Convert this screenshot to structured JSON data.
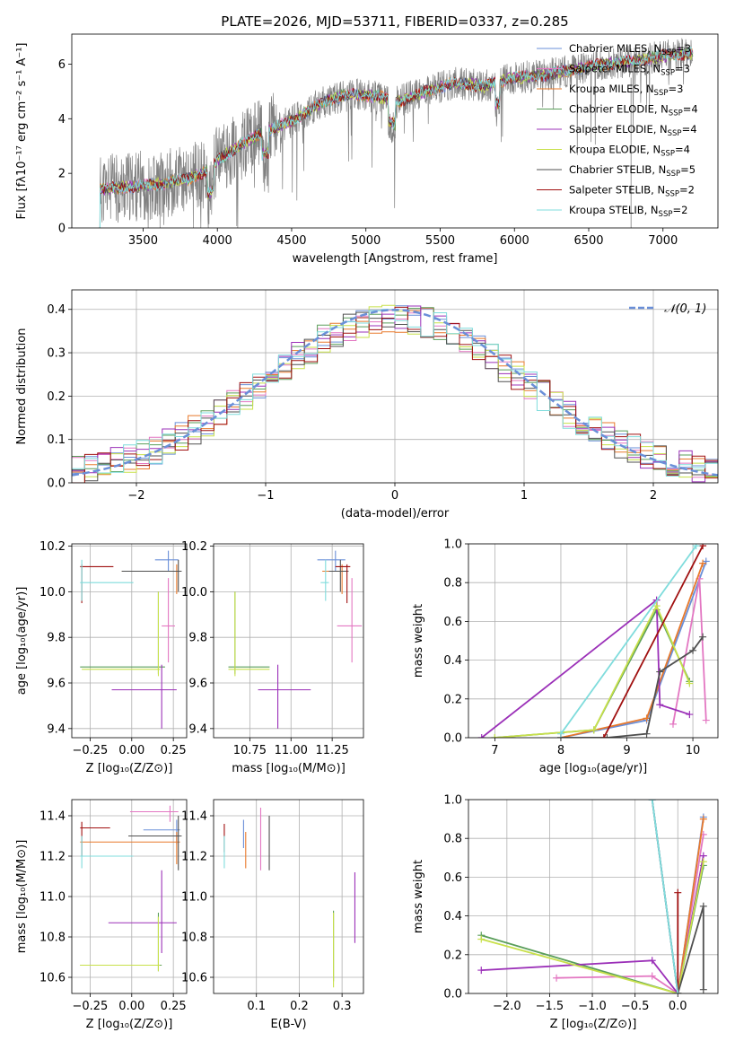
{
  "title": "PLATE=2026, MJD=53711, FIBERID=0337, z=0.285",
  "colors": {
    "Chabrier MILES": "#6a8fd8",
    "Salpeter MILES": "#e377c2",
    "Kroupa MILES": "#e8792b",
    "Chabrier ELODIE": "#5a9e5a",
    "Salpeter ELODIE": "#9b30b8",
    "Kroupa ELODIE": "#c8e04a",
    "Chabrier STELIB": "#505050",
    "Salpeter STELIB": "#a01010",
    "Kroupa STELIB": "#7fdcdc",
    "data": "#808080"
  },
  "chart_data": [
    {
      "type": "line",
      "name": "spectrum",
      "xlabel": "wavelength [Angstrom, rest frame]",
      "ylabel": "Flux [fλ10⁻¹⁷ erg cm⁻² s⁻¹ A⁻¹]",
      "xlim": [
        3020,
        7370
      ],
      "ylim": [
        0,
        7.1
      ],
      "xticks": [
        "3500",
        "4000",
        "4500",
        "5000",
        "5500",
        "6000",
        "6500",
        "7000"
      ],
      "yticks": [
        "0",
        "2",
        "4",
        "6"
      ],
      "continuum_x": [
        3210,
        3400,
        3600,
        3800,
        3950,
        4000,
        4150,
        4300,
        4500,
        4700,
        4900,
        5100,
        5200,
        5400,
        5600,
        5800,
        6000,
        6200,
        6400,
        6600,
        6800,
        7000,
        7200
      ],
      "continuum_y": [
        1.4,
        1.5,
        1.6,
        1.8,
        2.1,
        2.5,
        3.0,
        3.5,
        3.9,
        4.6,
        4.9,
        4.8,
        4.6,
        5.0,
        5.3,
        5.2,
        5.5,
        5.6,
        5.8,
        6.0,
        6.1,
        6.3,
        6.4
      ],
      "legend": [
        {
          "label": "Chabrier MILES, N",
          "sub": "SSP",
          "eq": "=3"
        },
        {
          "label": "Salpeter MILES, N",
          "sub": "SSP",
          "eq": "=3"
        },
        {
          "label": "Kroupa MILES, N",
          "sub": "SSP",
          "eq": "=3"
        },
        {
          "label": "Chabrier ELODIE, N",
          "sub": "SSP",
          "eq": "=4"
        },
        {
          "label": "Salpeter ELODIE, N",
          "sub": "SSP",
          "eq": "=4"
        },
        {
          "label": "Kroupa ELODIE, N",
          "sub": "SSP",
          "eq": "=4"
        },
        {
          "label": "Chabrier STELIB, N",
          "sub": "SSP",
          "eq": "=5"
        },
        {
          "label": "Salpeter STELIB, N",
          "sub": "SSP",
          "eq": "=2"
        },
        {
          "label": "Kroupa STELIB, N",
          "sub": "SSP",
          "eq": "=2"
        }
      ]
    },
    {
      "type": "line",
      "name": "residual histogram",
      "xlabel": "(data-model)/error",
      "ylabel": "Normed distribution",
      "xlim": [
        -2.5,
        2.5
      ],
      "ylim": [
        0,
        0.445
      ],
      "xticks": [
        "−2",
        "−1",
        "0",
        "1",
        "2"
      ],
      "yticks": [
        "0.0",
        "0.1",
        "0.2",
        "0.3",
        "0.4"
      ],
      "legend_label": "𝒩(0, 1)",
      "gaussian": {
        "mean": 0,
        "sigma": 1
      },
      "bin_width": 0.1
    },
    {
      "type": "scatter",
      "name": "age vs Z",
      "xlabel": "Z [log₁₀(Z/Z⊙)]",
      "ylabel": "age  [log₁₀(age/yr)]",
      "xlim": [
        -0.36,
        0.33
      ],
      "ylim": [
        9.36,
        10.21
      ],
      "xticks": [
        "−0.25",
        "0.00",
        "0.25"
      ],
      "xtick_vals": [
        -0.25,
        0,
        0.25
      ],
      "yticks": [
        "9.4",
        "9.6",
        "9.8",
        "10.0",
        "10.2"
      ],
      "ytick_vals": [
        9.4,
        9.6,
        9.8,
        10.0,
        10.2
      ],
      "points": [
        {
          "c": "Chabrier MILES",
          "x": 0.22,
          "xe": [
            0.14,
            0.28
          ],
          "y": 10.14,
          "ye": [
            10.09,
            10.18
          ]
        },
        {
          "c": "Salpeter MILES",
          "x": 0.22,
          "xe": [
            0.18,
            0.26
          ],
          "y": 9.85,
          "ye": [
            9.69,
            10.06
          ]
        },
        {
          "c": "Kroupa MILES",
          "x": 0.27,
          "xe": [
            -0.06,
            0.29
          ],
          "y": 10.09,
          "ye": [
            9.99,
            10.12
          ]
        },
        {
          "c": "Chabrier ELODIE",
          "x": 0.16,
          "xe": [
            -0.31,
            0.2
          ],
          "y": 9.67,
          "ye": [
            9.64,
            10.0
          ]
        },
        {
          "c": "Salpeter ELODIE",
          "x": 0.18,
          "xe": [
            -0.12,
            0.27
          ],
          "y": 9.57,
          "ye": [
            9.4,
            9.68
          ]
        },
        {
          "c": "Kroupa ELODIE",
          "x": 0.16,
          "xe": [
            -0.3,
            0.17
          ],
          "y": 9.66,
          "ye": [
            9.63,
            10.0
          ]
        },
        {
          "c": "Chabrier STELIB",
          "x": 0.28,
          "xe": [
            -0.06,
            0.3
          ],
          "y": 10.09,
          "ye": [
            10.0,
            10.14
          ]
        },
        {
          "c": "Salpeter STELIB",
          "x": -0.3,
          "xe": [
            -0.31,
            -0.11
          ],
          "y": 10.11,
          "ye": [
            9.95,
            10.12
          ]
        },
        {
          "c": "Kroupa STELIB",
          "x": -0.3,
          "xe": [
            -0.31,
            0.01
          ],
          "y": 10.04,
          "ye": [
            9.96,
            10.14
          ]
        }
      ]
    },
    {
      "type": "scatter",
      "name": "age vs mass",
      "xlabel": "mass [log₁₀(M/M⊙)]",
      "ylabel": "",
      "xlim": [
        10.53,
        11.44
      ],
      "ylim": [
        9.36,
        10.21
      ],
      "xticks": [
        "10.75",
        "11.00",
        "11.25"
      ],
      "xtick_vals": [
        10.75,
        11.0,
        11.25
      ],
      "yticks": [
        "9.4",
        "9.6",
        "9.8",
        "10.0",
        "10.2"
      ],
      "ytick_vals": [
        9.4,
        9.6,
        9.8,
        10.0,
        10.2
      ],
      "points": [
        {
          "c": "Chabrier MILES",
          "x": 11.27,
          "xe": [
            11.16,
            11.33
          ],
          "y": 10.14,
          "ye": [
            10.09,
            10.18
          ]
        },
        {
          "c": "Salpeter MILES",
          "x": 11.37,
          "xe": [
            11.28,
            11.43
          ],
          "y": 9.85,
          "ye": [
            9.69,
            10.06
          ]
        },
        {
          "c": "Kroupa MILES",
          "x": 11.31,
          "xe": [
            11.19,
            11.34
          ],
          "y": 10.09,
          "ye": [
            9.99,
            10.12
          ]
        },
        {
          "c": "Chabrier ELODIE",
          "x": 10.66,
          "xe": [
            10.62,
            10.87
          ],
          "y": 9.67,
          "ye": [
            9.64,
            10.0
          ]
        },
        {
          "c": "Salpeter ELODIE",
          "x": 10.92,
          "xe": [
            10.8,
            11.12
          ],
          "y": 9.57,
          "ye": [
            9.4,
            9.68
          ]
        },
        {
          "c": "Kroupa ELODIE",
          "x": 10.66,
          "xe": [
            10.62,
            10.87
          ],
          "y": 9.66,
          "ye": [
            9.63,
            10.0
          ]
        },
        {
          "c": "Chabrier STELIB",
          "x": 11.3,
          "xe": [
            11.23,
            11.35
          ],
          "y": 10.09,
          "ye": [
            10.0,
            10.14
          ]
        },
        {
          "c": "Salpeter STELIB",
          "x": 11.34,
          "xe": [
            11.27,
            11.36
          ],
          "y": 10.11,
          "ye": [
            9.95,
            10.12
          ]
        },
        {
          "c": "Kroupa STELIB",
          "x": 11.21,
          "xe": [
            11.18,
            11.23
          ],
          "y": 10.04,
          "ye": [
            9.96,
            10.14
          ]
        }
      ]
    },
    {
      "type": "line",
      "name": "mass weight vs age",
      "xlabel": "age  [log₁₀(age/yr)]",
      "ylabel": "mass weight",
      "xlim": [
        6.6,
        10.38
      ],
      "ylim": [
        0,
        1.0
      ],
      "xticks": [
        "7",
        "8",
        "9",
        "10"
      ],
      "xtick_vals": [
        7,
        8,
        9,
        10
      ],
      "yticks": [
        "0.0",
        "0.2",
        "0.4",
        "0.6",
        "0.8",
        "1.0"
      ],
      "ytick_vals": [
        0,
        0.2,
        0.4,
        0.6,
        0.8,
        1.0
      ],
      "series": [
        {
          "c": "Chabrier MILES",
          "x": [
            8.0,
            9.3,
            10.2
          ],
          "y": [
            0.0,
            0.09,
            0.91
          ]
        },
        {
          "c": "Salpeter MILES",
          "x": [
            9.7,
            10.1,
            10.2
          ],
          "y": [
            0.07,
            0.82,
            0.09
          ]
        },
        {
          "c": "Kroupa MILES",
          "x": [
            8.0,
            9.3,
            10.15
          ],
          "y": [
            0.0,
            0.1,
            0.9
          ]
        },
        {
          "c": "Chabrier ELODIE",
          "x": [
            7.0,
            8.5,
            9.45,
            9.95
          ],
          "y": [
            0.0,
            0.04,
            0.66,
            0.29
          ]
        },
        {
          "c": "Salpeter ELODIE",
          "x": [
            6.8,
            9.45,
            9.5,
            9.95
          ],
          "y": [
            0.0,
            0.71,
            0.17,
            0.12
          ]
        },
        {
          "c": "Kroupa ELODIE",
          "x": [
            7.0,
            8.5,
            9.45,
            9.95
          ],
          "y": [
            0.0,
            0.04,
            0.68,
            0.28
          ]
        },
        {
          "c": "Chabrier STELIB",
          "x": [
            8.0,
            8.7,
            9.3,
            9.5,
            10.0,
            10.15
          ],
          "y": [
            0.0,
            0.0,
            0.02,
            0.34,
            0.45,
            0.52
          ]
        },
        {
          "c": "Salpeter STELIB",
          "x": [
            8.65,
            10.15
          ],
          "y": [
            0.0,
            0.99
          ]
        },
        {
          "c": "Kroupa STELIB",
          "x": [
            8.0,
            10.05
          ],
          "y": [
            0.02,
            0.99
          ]
        }
      ]
    },
    {
      "type": "scatter",
      "name": "mass vs Z",
      "xlabel": "Z [log₁₀(Z/Z⊙)]",
      "ylabel": "mass [log₁₀(M/M⊙)]",
      "xlim": [
        -0.36,
        0.33
      ],
      "ylim": [
        10.52,
        11.48
      ],
      "xticks": [
        "−0.25",
        "0.00",
        "0.25"
      ],
      "xtick_vals": [
        -0.25,
        0,
        0.25
      ],
      "yticks": [
        "10.6",
        "10.8",
        "11.0",
        "11.2",
        "11.4"
      ],
      "ytick_vals": [
        10.6,
        10.8,
        11.0,
        11.2,
        11.4
      ],
      "points": [
        {
          "c": "Chabrier MILES",
          "x": 0.27,
          "xe": [
            0.07,
            0.29
          ],
          "y": 11.33,
          "ye": [
            11.26,
            11.38
          ]
        },
        {
          "c": "Salpeter MILES",
          "x": 0.23,
          "xe": [
            -0.01,
            0.28
          ],
          "y": 11.42,
          "ye": [
            11.37,
            11.45
          ]
        },
        {
          "c": "Kroupa MILES",
          "x": 0.27,
          "xe": [
            -0.31,
            0.29
          ],
          "y": 11.27,
          "ye": [
            11.16,
            11.32
          ]
        },
        {
          "c": "Chabrier ELODIE",
          "x": 0.16,
          "xe": [
            -0.31,
            0.18
          ],
          "y": 10.66,
          "ye": [
            10.63,
            10.92
          ]
        },
        {
          "c": "Salpeter ELODIE",
          "x": 0.18,
          "xe": [
            -0.14,
            0.27
          ],
          "y": 10.87,
          "ye": [
            10.72,
            11.13
          ]
        },
        {
          "c": "Kroupa ELODIE",
          "x": 0.16,
          "xe": [
            -0.31,
            0.17
          ],
          "y": 10.66,
          "ye": [
            10.63,
            10.9
          ]
        },
        {
          "c": "Chabrier STELIB",
          "x": 0.28,
          "xe": [
            -0.02,
            0.3
          ],
          "y": 11.3,
          "ye": [
            11.13,
            11.4
          ]
        },
        {
          "c": "Salpeter STELIB",
          "x": -0.3,
          "xe": [
            -0.31,
            -0.13
          ],
          "y": 11.34,
          "ye": [
            11.2,
            11.37
          ]
        },
        {
          "c": "Kroupa STELIB",
          "x": -0.3,
          "xe": [
            -0.31,
            0.01
          ],
          "y": 11.2,
          "ye": [
            11.14,
            11.3
          ]
        }
      ]
    },
    {
      "type": "scatter",
      "name": "mass vs E(B-V)",
      "xlabel": "E(B-V)",
      "ylabel": "",
      "xlim": [
        0.0,
        0.35
      ],
      "ylim": [
        10.52,
        11.48
      ],
      "xticks": [
        "0.1",
        "0.2",
        "0.3"
      ],
      "xtick_vals": [
        0.1,
        0.2,
        0.3
      ],
      "yticks": [
        "10.6",
        "10.8",
        "11.0",
        "11.2",
        "11.4"
      ],
      "ytick_vals": [
        10.6,
        10.8,
        11.0,
        11.2,
        11.4
      ],
      "points": [
        {
          "c": "Chabrier MILES",
          "x": 0.07,
          "ye": [
            11.24,
            11.38
          ]
        },
        {
          "c": "Salpeter MILES",
          "x": 0.11,
          "ye": [
            11.13,
            11.44
          ]
        },
        {
          "c": "Kroupa MILES",
          "x": 0.075,
          "ye": [
            11.14,
            11.32
          ]
        },
        {
          "c": "Chabrier ELODIE",
          "x": 0.28,
          "ye": [
            10.58,
            10.93
          ]
        },
        {
          "c": "Salpeter ELODIE",
          "x": 0.33,
          "ye": [
            10.77,
            11.12
          ]
        },
        {
          "c": "Kroupa ELODIE",
          "x": 0.28,
          "ye": [
            10.55,
            10.92
          ]
        },
        {
          "c": "Chabrier STELIB",
          "x": 0.13,
          "ye": [
            11.13,
            11.4
          ]
        },
        {
          "c": "Salpeter STELIB",
          "x": 0.025,
          "ye": [
            11.22,
            11.36
          ]
        },
        {
          "c": "Kroupa STELIB",
          "x": 0.025,
          "ye": [
            11.14,
            11.3
          ]
        }
      ]
    },
    {
      "type": "line",
      "name": "mass weight vs Z",
      "xlabel": "Z [log₁₀(Z/Z⊙)]",
      "ylabel": "mass weight",
      "xlim": [
        -2.45,
        0.47
      ],
      "ylim": [
        0,
        1.0
      ],
      "xticks": [
        "−2.0",
        "−1.5",
        "−1.0",
        "−0.5",
        "0.0"
      ],
      "xtick_vals": [
        -2.0,
        -1.5,
        -1.0,
        -0.5,
        0.0
      ],
      "yticks": [
        "0.0",
        "0.2",
        "0.4",
        "0.6",
        "0.8",
        "1.0"
      ],
      "ytick_vals": [
        0,
        0.2,
        0.4,
        0.6,
        0.8,
        1.0
      ],
      "series": [
        {
          "c": "Chabrier MILES",
          "x": [
            -0.3,
            0.0,
            0.3
          ],
          "y": [
            1.0,
            0.0,
            0.91
          ]
        },
        {
          "c": "Salpeter MILES",
          "x": [
            -1.42,
            -0.3,
            0.0,
            0.3
          ],
          "y": [
            0.08,
            0.09,
            0.0,
            0.82
          ]
        },
        {
          "c": "Kroupa MILES",
          "x": [
            0.0,
            0.3
          ],
          "y": [
            0.0,
            0.9
          ]
        },
        {
          "c": "Chabrier ELODIE",
          "x": [
            -2.3,
            0.0,
            0.3
          ],
          "y": [
            0.3,
            0.0,
            0.66
          ]
        },
        {
          "c": "Salpeter ELODIE",
          "x": [
            -2.3,
            -0.3,
            0.0,
            0.3
          ],
          "y": [
            0.12,
            0.17,
            0.0,
            0.71
          ]
        },
        {
          "c": "Kroupa ELODIE",
          "x": [
            -2.3,
            0.0,
            0.3
          ],
          "y": [
            0.28,
            0.0,
            0.68
          ]
        },
        {
          "c": "Chabrier STELIB",
          "x": [
            -0.3,
            0.0,
            0.3,
            0.3
          ],
          "y": [
            1.0,
            0.0,
            0.45,
            0.02
          ]
        },
        {
          "c": "Salpeter STELIB",
          "x": [
            -0.0,
            0.0
          ],
          "y": [
            0.0,
            0.52
          ]
        },
        {
          "c": "Kroupa STELIB",
          "x": [
            -0.3,
            0.0
          ],
          "y": [
            1.0,
            0.0
          ]
        }
      ]
    }
  ]
}
